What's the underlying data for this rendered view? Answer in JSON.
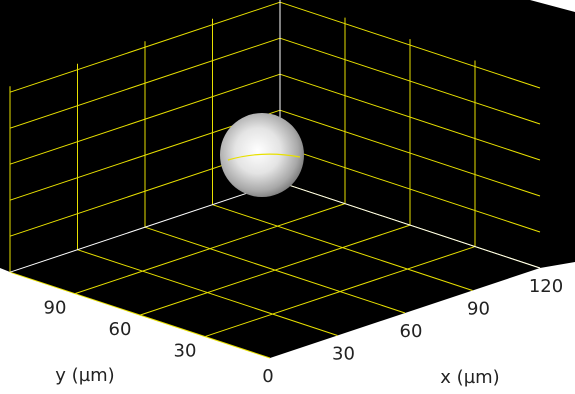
{
  "chart_data": {
    "type": "volume",
    "xlabel": "x (µm)",
    "ylabel": "y (µm)",
    "xlim": [
      0,
      120
    ],
    "ylim": [
      0,
      120
    ],
    "xticks": [
      0,
      30,
      60,
      90,
      120
    ],
    "yticks": [
      30,
      60,
      90
    ],
    "grid": true,
    "grid_color": "#e8e000"
  }
}
